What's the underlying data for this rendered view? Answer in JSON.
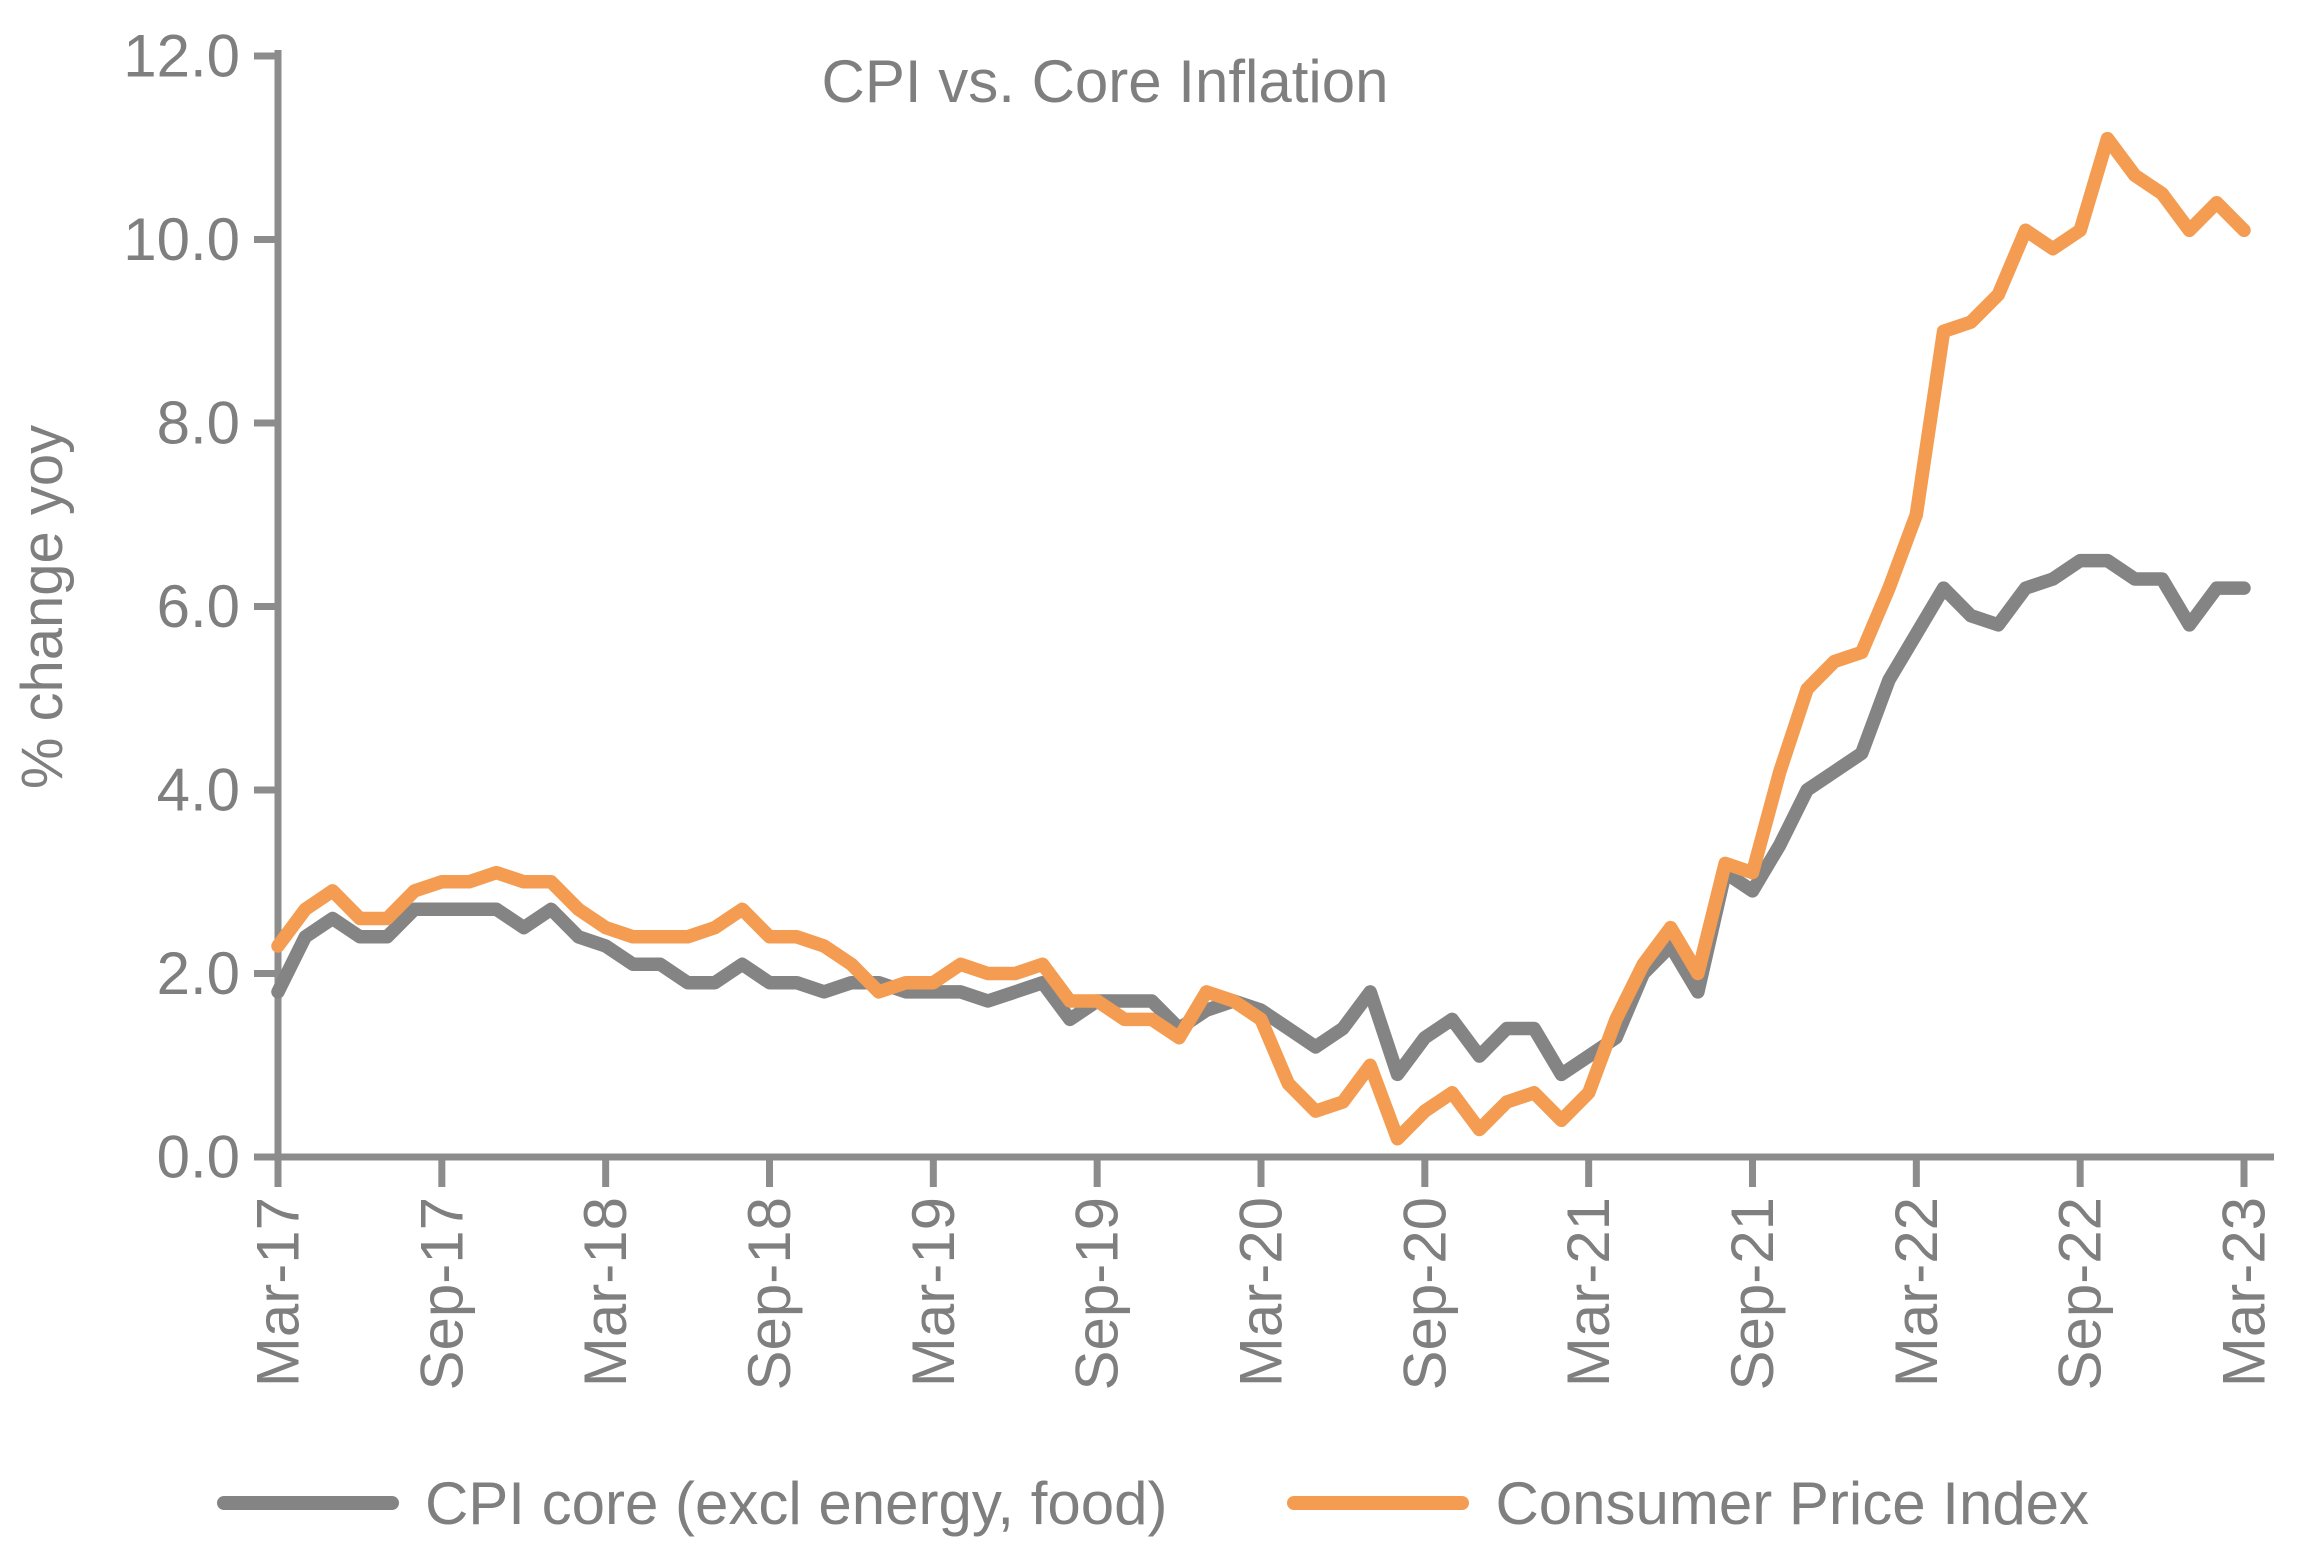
{
  "title": "CPI vs. Core Inflation",
  "y_axis": {
    "label": "% change yoy",
    "ticks": [
      "12.0",
      "10.0",
      "8.0",
      "6.0",
      "4.0",
      "2.0",
      "0.0"
    ],
    "min": 0.0,
    "max": 12.0
  },
  "x_axis": {
    "ticks": [
      "Mar-17",
      "Sep-17",
      "Mar-18",
      "Sep-18",
      "Mar-19",
      "Sep-19",
      "Mar-20",
      "Sep-20",
      "Mar-21",
      "Sep-21",
      "Mar-22",
      "Sep-22",
      "Mar-23"
    ]
  },
  "colors": {
    "core_series": "#848484",
    "cpi_series": "#F49C51",
    "axis": "#8C8C8C",
    "text": "#7F7F7F"
  },
  "chart_data": {
    "type": "line",
    "title": "CPI vs. Core Inflation",
    "xlabel": "",
    "ylabel": "% change yoy",
    "ylim": [
      0.0,
      12.0
    ],
    "x_start": "Mar-17",
    "x_end": "Mar-23",
    "frequency": "monthly",
    "x_tick_labels": [
      "Mar-17",
      "Sep-17",
      "Mar-18",
      "Sep-18",
      "Mar-19",
      "Sep-19",
      "Mar-20",
      "Sep-20",
      "Mar-21",
      "Sep-21",
      "Mar-22",
      "Sep-22",
      "Mar-23"
    ],
    "grid": false,
    "legend_position": "bottom",
    "series": [
      {
        "name": "CPI core (excl energy, food)",
        "color": "#848484",
        "values": [
          1.8,
          2.4,
          2.6,
          2.4,
          2.4,
          2.7,
          2.7,
          2.7,
          2.7,
          2.5,
          2.7,
          2.4,
          2.3,
          2.1,
          2.1,
          1.9,
          1.9,
          2.1,
          1.9,
          1.9,
          1.8,
          1.9,
          1.9,
          1.8,
          1.8,
          1.8,
          1.7,
          1.8,
          1.9,
          1.5,
          1.7,
          1.7,
          1.7,
          1.4,
          1.6,
          1.7,
          1.6,
          1.4,
          1.2,
          1.4,
          1.8,
          0.9,
          1.3,
          1.5,
          1.1,
          1.4,
          1.4,
          0.9,
          1.1,
          1.3,
          2.0,
          2.3,
          1.8,
          3.1,
          2.9,
          3.4,
          4.0,
          4.2,
          4.4,
          5.2,
          5.7,
          6.2,
          5.9,
          5.8,
          6.2,
          6.3,
          6.5,
          6.5,
          6.3,
          6.3,
          5.8,
          6.2,
          6.2
        ]
      },
      {
        "name": "Consumer Price Index",
        "color": "#F49C51",
        "values": [
          2.3,
          2.7,
          2.9,
          2.6,
          2.6,
          2.9,
          3.0,
          3.0,
          3.1,
          3.0,
          3.0,
          2.7,
          2.5,
          2.4,
          2.4,
          2.4,
          2.5,
          2.7,
          2.4,
          2.4,
          2.3,
          2.1,
          1.8,
          1.9,
          1.9,
          2.1,
          2.0,
          2.0,
          2.1,
          1.7,
          1.7,
          1.5,
          1.5,
          1.3,
          1.8,
          1.7,
          1.5,
          0.8,
          0.5,
          0.6,
          1.0,
          0.2,
          0.5,
          0.7,
          0.3,
          0.6,
          0.7,
          0.4,
          0.7,
          1.5,
          2.1,
          2.5,
          2.0,
          3.2,
          3.1,
          4.2,
          5.1,
          5.4,
          5.5,
          6.2,
          7.0,
          9.0,
          9.1,
          9.4,
          10.1,
          9.9,
          10.1,
          11.1,
          10.7,
          10.5,
          10.1,
          10.4,
          10.1
        ]
      }
    ]
  }
}
